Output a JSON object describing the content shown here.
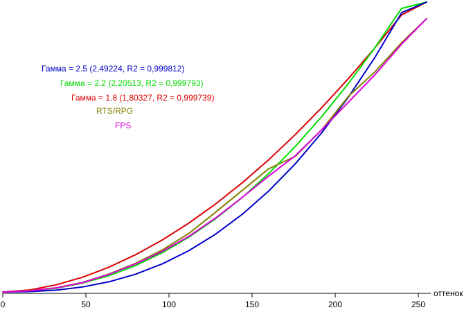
{
  "chart_data": {
    "type": "line",
    "xlabel": "оттенок",
    "xlim": [
      0,
      255
    ],
    "ylim": [
      0,
      1
    ],
    "x_ticks": [
      0,
      50,
      100,
      150,
      200,
      250
    ],
    "grid": false,
    "legend_position": "top-left",
    "series": [
      {
        "name": "Гамма = 2.5 (2,49224, R2 = 0,999812)",
        "color": "#0000cc",
        "x": [
          0,
          16,
          32,
          48,
          64,
          80,
          96,
          112,
          128,
          144,
          160,
          176,
          192,
          208,
          224,
          240,
          255
        ],
        "y": [
          0,
          0.0011,
          0.0062,
          0.0172,
          0.0352,
          0.0615,
          0.097,
          0.1426,
          0.1992,
          0.2675,
          0.3482,
          0.4421,
          0.55,
          0.6725,
          0.8101,
          0.9636,
          1.0
        ]
      },
      {
        "name": "Гамма = 2.2 (2,20513, R2 = 0,999793)",
        "color": "#00dd00",
        "x": [
          0,
          16,
          32,
          48,
          64,
          80,
          96,
          112,
          128,
          144,
          160,
          176,
          192,
          208,
          224,
          240,
          255
        ],
        "y": [
          0,
          0.003,
          0.0129,
          0.0306,
          0.0565,
          0.0914,
          0.1355,
          0.1892,
          0.2524,
          0.3255,
          0.4087,
          0.502,
          0.6056,
          0.7194,
          0.8436,
          0.9782,
          1.0
        ]
      },
      {
        "name": "Гамма = 1.8 (1,80327, R2 = 0,999739)",
        "color": "#dd0000",
        "x": [
          0,
          16,
          32,
          48,
          64,
          80,
          96,
          112,
          128,
          144,
          160,
          176,
          192,
          208,
          224,
          240,
          255
        ],
        "y": [
          0,
          0.0069,
          0.0244,
          0.0509,
          0.0858,
          0.1287,
          0.1795,
          0.2378,
          0.3035,
          0.3763,
          0.4562,
          0.5429,
          0.6364,
          0.7364,
          0.843,
          0.9559,
          1.0
        ]
      },
      {
        "name": "RTS/RPG",
        "color": "#808000",
        "x": [
          0,
          16,
          32,
          48,
          64,
          80,
          96,
          112,
          128,
          144,
          160,
          176,
          192,
          208,
          224,
          240,
          255
        ],
        "y": [
          0,
          0.005,
          0.014,
          0.033,
          0.062,
          0.099,
          0.145,
          0.202,
          0.275,
          0.35,
          0.425,
          0.468,
          0.56,
          0.675,
          0.76,
          0.86,
          0.943
        ]
      },
      {
        "name": "FPS",
        "color": "#dd00dd",
        "x": [
          0,
          16,
          32,
          48,
          64,
          80,
          96,
          112,
          128,
          144,
          160,
          176,
          192,
          208,
          224,
          240,
          255
        ],
        "y": [
          0,
          0.004,
          0.014,
          0.032,
          0.061,
          0.097,
          0.14,
          0.192,
          0.255,
          0.326,
          0.4,
          0.47,
          0.56,
          0.655,
          0.75,
          0.855,
          0.943
        ]
      }
    ]
  }
}
